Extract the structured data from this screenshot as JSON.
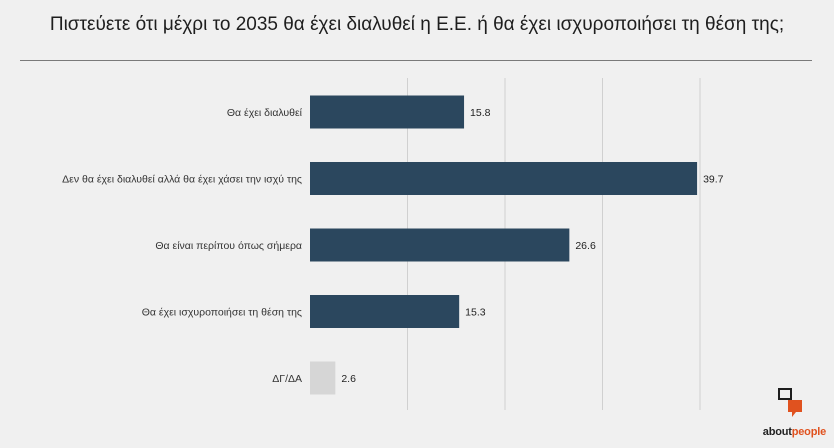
{
  "colors": {
    "bar": "#2b475e",
    "bar_muted": "#d6d6d6",
    "grid": "#d0d0d0"
  },
  "brand": {
    "prefix": "about",
    "suffix": "people"
  },
  "chart_data": {
    "type": "bar",
    "orientation": "horizontal",
    "title": "Πιστεύετε ότι μέχρι το 2035 θα έχει διαλυθεί η Ε.Ε. ή θα έχει ισχυροποιήσει τη θέση της;",
    "categories": [
      "Θα έχει διαλυθεί",
      "Δεν θα έχει διαλυθεί αλλά θα έχει χάσει την ισχύ της",
      "Θα είναι περίπου όπως σήμερα",
      "Θα έχει ισχυροποιήσει τη θέση της",
      "ΔΓ/ΔΑ"
    ],
    "values": [
      15.8,
      39.7,
      26.6,
      15.3,
      2.6
    ],
    "xlim": [
      0,
      40
    ],
    "grid": true,
    "muted_categories": [
      "ΔΓ/ΔΑ"
    ]
  }
}
